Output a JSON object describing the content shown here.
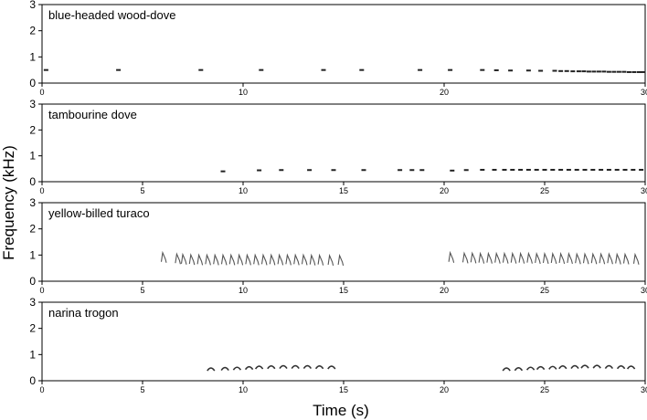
{
  "figure": {
    "ylabel": "Frequency (kHz)",
    "xlabel": "Time (s)"
  },
  "chart_data": [
    {
      "type": "scatter",
      "title": "blue-headed wood-dove",
      "xlim": [
        0,
        30
      ],
      "ylim": [
        0,
        3
      ],
      "xticks": [
        0,
        10,
        20,
        30
      ],
      "yticks": [
        0,
        1,
        2,
        3
      ],
      "mark_color": "#222222",
      "notes_time_s": [
        0.2,
        3.8,
        7.9,
        10.9,
        14.0,
        15.9,
        18.8,
        20.3,
        21.9,
        22.6,
        23.3,
        24.2,
        24.8,
        25.5,
        25.8,
        26.1,
        26.4,
        26.7,
        26.95,
        27.2,
        27.45,
        27.7,
        27.95,
        28.2,
        28.45,
        28.7,
        28.95,
        29.2,
        29.45,
        29.7,
        29.9
      ],
      "notes_freq_khz": [
        0.5,
        0.5,
        0.5,
        0.5,
        0.5,
        0.5,
        0.5,
        0.5,
        0.5,
        0.49,
        0.48,
        0.48,
        0.47,
        0.47,
        0.46,
        0.46,
        0.45,
        0.45,
        0.45,
        0.44,
        0.44,
        0.44,
        0.44,
        0.43,
        0.43,
        0.43,
        0.43,
        0.42,
        0.42,
        0.42,
        0.42
      ]
    },
    {
      "type": "scatter",
      "title": "tambourine dove",
      "xlim": [
        0,
        30
      ],
      "ylim": [
        0,
        3
      ],
      "xticks": [
        0,
        5,
        10,
        15,
        20,
        25,
        30
      ],
      "yticks": [
        0,
        1,
        2,
        3
      ],
      "mark_color": "#222222",
      "notes_time_s": [
        9.0,
        10.8,
        11.9,
        13.3,
        14.5,
        16.0,
        17.8,
        18.4,
        18.9,
        20.4,
        21.1,
        21.9,
        22.5,
        23.0,
        23.4,
        23.8,
        24.2,
        24.6,
        25.0,
        25.4,
        25.8,
        26.2,
        26.6,
        27.0,
        27.4,
        27.8,
        28.2,
        28.6,
        29.0,
        29.4,
        29.8
      ],
      "notes_freq_khz": [
        0.4,
        0.44,
        0.45,
        0.45,
        0.45,
        0.45,
        0.45,
        0.45,
        0.45,
        0.43,
        0.45,
        0.46,
        0.46,
        0.46,
        0.46,
        0.46,
        0.46,
        0.46,
        0.46,
        0.46,
        0.46,
        0.46,
        0.46,
        0.46,
        0.46,
        0.46,
        0.46,
        0.46,
        0.46,
        0.46,
        0.46
      ]
    },
    {
      "type": "scatter",
      "title": "yellow-billed turaco",
      "xlim": [
        0,
        30
      ],
      "ylim": [
        0,
        3
      ],
      "xticks": [
        0,
        5,
        10,
        15,
        20,
        25,
        30
      ],
      "yticks": [
        0,
        1,
        2,
        3
      ],
      "mark_color": "#555555",
      "notes_time_s": [
        6.0,
        6.7,
        7.0,
        7.4,
        7.8,
        8.2,
        8.6,
        9.0,
        9.4,
        9.8,
        10.2,
        10.6,
        11.0,
        11.4,
        11.8,
        12.2,
        12.6,
        13.0,
        13.4,
        13.8,
        14.3,
        14.8,
        20.3,
        21.0,
        21.4,
        21.8,
        22.2,
        22.6,
        23.0,
        23.4,
        23.8,
        24.2,
        24.6,
        25.0,
        25.4,
        25.8,
        26.2,
        26.6,
        27.0,
        27.4,
        27.8,
        28.2,
        28.6,
        29.0,
        29.5
      ],
      "notes_freq_khz": [
        0.95,
        0.9,
        0.88,
        0.87,
        0.86,
        0.86,
        0.86,
        0.86,
        0.86,
        0.86,
        0.86,
        0.86,
        0.86,
        0.86,
        0.86,
        0.86,
        0.86,
        0.86,
        0.85,
        0.85,
        0.84,
        0.84,
        0.95,
        0.93,
        0.93,
        0.92,
        0.92,
        0.92,
        0.92,
        0.92,
        0.92,
        0.92,
        0.91,
        0.91,
        0.91,
        0.91,
        0.91,
        0.9,
        0.9,
        0.9,
        0.9,
        0.9,
        0.89,
        0.89,
        0.88
      ]
    },
    {
      "type": "scatter",
      "title": "narina trogon",
      "xlim": [
        0,
        30
      ],
      "ylim": [
        0,
        3
      ],
      "xticks": [
        0,
        5,
        10,
        15,
        20,
        25,
        30
      ],
      "yticks": [
        0,
        1,
        2,
        3
      ],
      "mark_color": "#333333",
      "notes_time_s": [
        8.4,
        9.1,
        9.7,
        10.3,
        10.8,
        11.4,
        12.0,
        12.6,
        13.2,
        13.8,
        14.4,
        23.1,
        23.7,
        24.3,
        24.8,
        25.4,
        25.9,
        26.5,
        27.0,
        27.6,
        28.2,
        28.8,
        29.3
      ],
      "notes_freq_khz": [
        0.45,
        0.47,
        0.48,
        0.5,
        0.52,
        0.53,
        0.54,
        0.54,
        0.54,
        0.53,
        0.52,
        0.45,
        0.46,
        0.48,
        0.5,
        0.51,
        0.53,
        0.54,
        0.55,
        0.55,
        0.54,
        0.53,
        0.52
      ]
    }
  ]
}
